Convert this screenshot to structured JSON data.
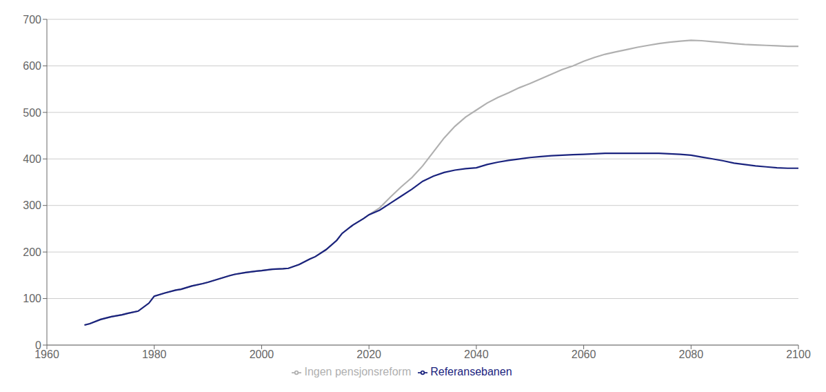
{
  "chart_data": {
    "type": "line",
    "x": [
      1967,
      1968,
      1970,
      1972,
      1974,
      1975,
      1977,
      1979,
      1980,
      1982,
      1984,
      1985,
      1987,
      1989,
      1990,
      1992,
      1994,
      1995,
      1997,
      1999,
      2000,
      2002,
      2004,
      2005,
      2007,
      2009,
      2010,
      2012,
      2014,
      2015,
      2017,
      2019,
      2020,
      2022,
      2024,
      2026,
      2028,
      2030,
      2032,
      2034,
      2036,
      2038,
      2040,
      2042,
      2044,
      2046,
      2048,
      2050,
      2052,
      2054,
      2056,
      2058,
      2060,
      2062,
      2064,
      2066,
      2068,
      2070,
      2072,
      2074,
      2076,
      2078,
      2080,
      2082,
      2084,
      2086,
      2088,
      2090,
      2092,
      2094,
      2096,
      2098,
      2100
    ],
    "series": [
      {
        "name": "Ingen pensjonsreform",
        "color": "#b0b0b0",
        "values": [
          43,
          46,
          55,
          61,
          65,
          68,
          73,
          90,
          105,
          112,
          118,
          120,
          127,
          132,
          135,
          142,
          149,
          152,
          156,
          159,
          160,
          163,
          164,
          165,
          173,
          185,
          190,
          205,
          225,
          240,
          258,
          272,
          280,
          295,
          318,
          340,
          360,
          385,
          415,
          445,
          470,
          490,
          505,
          520,
          532,
          542,
          553,
          562,
          572,
          582,
          592,
          600,
          610,
          618,
          625,
          630,
          635,
          640,
          644,
          648,
          651,
          653,
          655,
          654,
          652,
          650,
          648,
          646,
          645,
          644,
          643,
          642,
          642
        ]
      },
      {
        "name": "Referansebanen",
        "color": "#1a237e",
        "values": [
          43,
          46,
          55,
          61,
          65,
          68,
          73,
          90,
          105,
          112,
          118,
          120,
          127,
          132,
          135,
          142,
          149,
          152,
          156,
          159,
          160,
          163,
          164,
          165,
          173,
          185,
          190,
          205,
          225,
          240,
          258,
          272,
          280,
          290,
          305,
          320,
          335,
          352,
          363,
          371,
          376,
          379,
          381,
          388,
          393,
          397,
          400,
          403,
          405,
          407,
          408,
          409,
          410,
          411,
          412,
          412,
          412,
          412,
          412,
          412,
          411,
          410,
          408,
          404,
          400,
          396,
          391,
          388,
          385,
          383,
          381,
          380,
          380
        ]
      }
    ],
    "xlim": [
      1960,
      2100
    ],
    "ylim": [
      0,
      700
    ],
    "xticks": [
      1960,
      1980,
      2000,
      2020,
      2040,
      2060,
      2080,
      2100
    ],
    "yticks": [
      0,
      100,
      200,
      300,
      400,
      500,
      600,
      700
    ],
    "grid": true,
    "legend": "bottom"
  }
}
